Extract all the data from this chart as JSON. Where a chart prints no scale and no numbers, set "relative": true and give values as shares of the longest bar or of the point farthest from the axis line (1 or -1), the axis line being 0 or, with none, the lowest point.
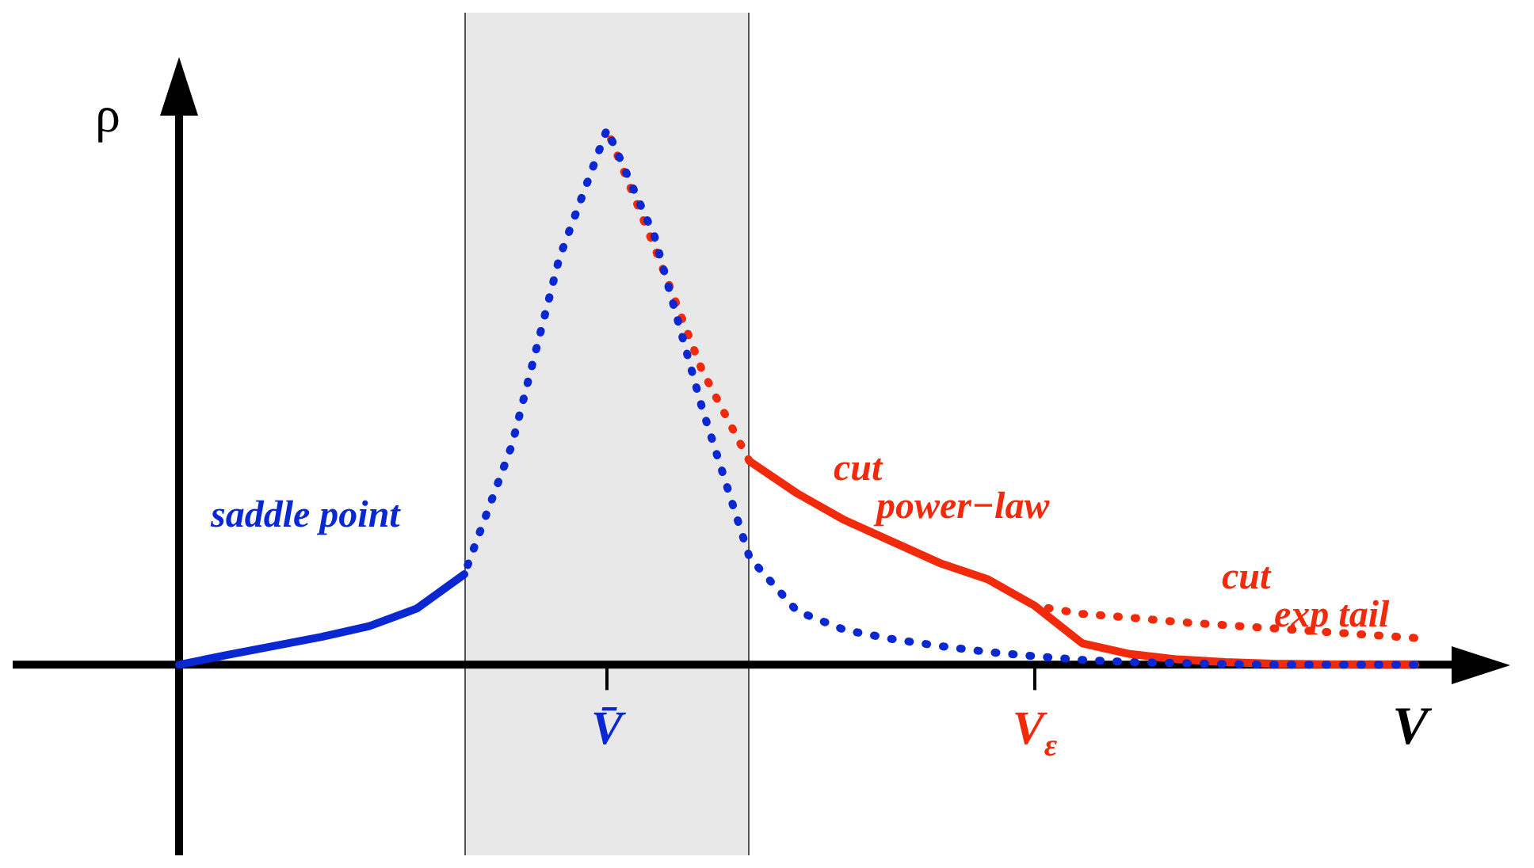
{
  "chart_data": {
    "type": "line",
    "relative": true,
    "xlabel": "V",
    "ylabel": "ρ",
    "categories": [
      null,
      null,
      null,
      null,
      null,
      null,
      null,
      null,
      null,
      "V̄",
      null,
      null,
      null,
      null,
      null,
      null,
      null,
      null,
      "V$_{ε}$",
      null,
      null,
      null,
      null,
      null,
      null,
      null,
      null,
      null,
      null
    ],
    "legend": false,
    "marker": "none",
    "series": [
      {
        "name": "saddle point",
        "color": "#0a28d2",
        "line_style": "solid",
        "values": [
          0,
          0.018,
          0.035,
          0.052,
          0.072,
          0.105,
          0.169,
          null,
          null,
          null,
          null,
          null,
          null,
          null,
          null,
          null,
          null,
          null,
          null,
          null,
          null,
          null,
          null,
          null,
          null,
          null,
          null,
          null,
          null
        ]
      },
      {
        "color": "#0a28d2",
        "line_style": "dotted",
        "values": [
          null,
          null,
          null,
          null,
          null,
          null,
          0.169,
          0.41,
          0.76,
          1.0,
          0.8,
          0.48,
          0.2,
          0.1,
          0.065,
          0.048,
          0.035,
          0.024,
          0.016,
          0.009,
          0.005,
          0.003,
          0.001,
          0,
          0,
          0,
          0,
          null,
          null
        ]
      },
      {
        "color": "#f02a0a",
        "line_style": "dotted",
        "values": [
          null,
          null,
          null,
          null,
          null,
          null,
          null,
          null,
          null,
          1.0,
          0.78,
          0.55,
          0.38,
          null,
          null,
          null,
          null,
          null,
          null,
          null,
          null,
          null,
          null,
          null,
          null,
          null,
          null,
          null,
          null
        ]
      },
      {
        "name": "cut\npower−law",
        "color": "#f02a0a",
        "line_style": "solid",
        "values": [
          null,
          null,
          null,
          null,
          null,
          null,
          null,
          null,
          null,
          null,
          null,
          null,
          0.38,
          0.32,
          0.27,
          0.23,
          0.19,
          0.16,
          0.11,
          0.04,
          0.02,
          0.01,
          0.005,
          0.002,
          0.001,
          0,
          0,
          null,
          null
        ]
      },
      {
        "name": "cut\nexp tail",
        "color": "#f02a0a",
        "line_style": "dotted",
        "values": [
          null,
          null,
          null,
          null,
          null,
          null,
          null,
          null,
          null,
          null,
          null,
          null,
          null,
          null,
          null,
          null,
          null,
          null,
          0.11,
          0.095,
          0.088,
          0.08,
          0.074,
          0.068,
          0.062,
          0.056,
          0.05,
          null,
          null
        ]
      }
    ]
  }
}
